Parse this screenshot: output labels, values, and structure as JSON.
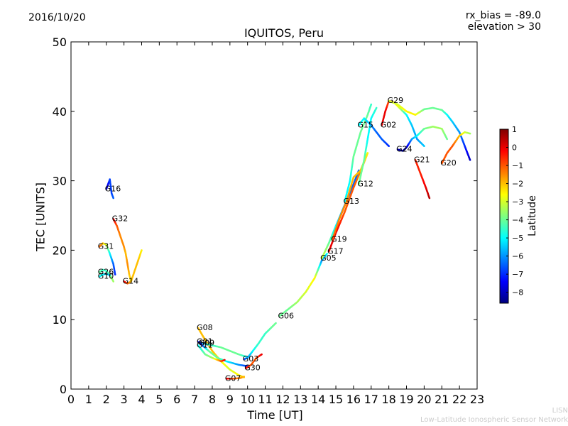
{
  "header": {
    "date": "2016/10/20",
    "title": "IQUITOS, Peru",
    "rx_bias": "rx_bias = -89.0",
    "elevation": "elevation > 30"
  },
  "footer": {
    "credit_line1": "LISN",
    "credit_line2": "Low-Latitude Ionospheric Sensor Network"
  },
  "colorbar": {
    "label": "Latitude",
    "ticks": [
      "1",
      "0",
      "−1",
      "−2",
      "−3",
      "−4",
      "−5",
      "−6",
      "−7",
      "−8"
    ],
    "tick_values": [
      1,
      0,
      -1,
      -2,
      -3,
      -4,
      -5,
      -6,
      -7,
      -8
    ],
    "range": [
      -8.6,
      1.0
    ],
    "colormap": "jet"
  },
  "chart_data": {
    "type": "scatter",
    "xlabel": "Time [UT]",
    "ylabel": "TEC [UNITS]",
    "xlim": [
      0,
      23
    ],
    "ylim": [
      0,
      50
    ],
    "xticks": [
      0,
      1,
      2,
      3,
      4,
      5,
      6,
      7,
      8,
      9,
      10,
      11,
      12,
      13,
      14,
      15,
      16,
      17,
      18,
      19,
      20,
      21,
      22,
      23
    ],
    "yticks": [
      0,
      10,
      20,
      30,
      40,
      50
    ],
    "grid": false,
    "color_by": "Latitude",
    "series": [
      {
        "name": "G16",
        "points": [
          [
            2.0,
            28.8,
            -8
          ],
          [
            2.1,
            29.5,
            -7.5
          ],
          [
            2.2,
            30.2,
            -6.8
          ],
          [
            2.3,
            28.2,
            -6.8
          ],
          [
            2.4,
            27.5,
            -6.5
          ]
        ]
      },
      {
        "name": "G32",
        "points": [
          [
            2.4,
            24.5,
            0
          ],
          [
            2.6,
            23.5,
            -1
          ],
          [
            2.8,
            22,
            -1.5
          ],
          [
            3.0,
            20.5,
            -1.5
          ],
          [
            3.1,
            19.5,
            -2
          ],
          [
            3.2,
            18,
            -1.5
          ],
          [
            3.3,
            16.5,
            -2
          ],
          [
            3.4,
            15.5,
            -2.5
          ]
        ]
      },
      {
        "name": "G31",
        "points": [
          [
            1.6,
            20.5,
            -1
          ],
          [
            1.8,
            21,
            -2
          ],
          [
            2.0,
            20.8,
            -3
          ],
          [
            2.2,
            19.5,
            -5
          ],
          [
            2.4,
            18,
            -6.5
          ],
          [
            2.5,
            16.5,
            -7
          ]
        ]
      },
      {
        "name": "G26",
        "points": [
          [
            1.6,
            16.8,
            -4
          ],
          [
            1.8,
            17.2,
            -4.5
          ],
          [
            2.0,
            17,
            -4.5
          ],
          [
            2.2,
            16.5,
            -4
          ],
          [
            2.4,
            15.5,
            -3.5
          ]
        ]
      },
      {
        "name": "G10",
        "points": [
          [
            1.6,
            16.2,
            -5
          ],
          [
            1.8,
            16.5,
            -5
          ],
          [
            2.0,
            16.6,
            -5.5
          ],
          [
            2.2,
            16.4,
            -5.5
          ]
        ]
      },
      {
        "name": "G14",
        "points": [
          [
            3.0,
            15.5,
            0
          ],
          [
            3.2,
            15.2,
            -1
          ],
          [
            3.4,
            15.5,
            -2
          ],
          [
            3.6,
            17,
            -2
          ],
          [
            3.8,
            18.5,
            -2
          ],
          [
            4.0,
            20,
            -2.5
          ]
        ]
      },
      {
        "name": "G08",
        "points": [
          [
            7.2,
            8.8,
            -2
          ],
          [
            7.5,
            7.5,
            -2
          ],
          [
            8.0,
            5.5,
            -2
          ],
          [
            8.5,
            4,
            -2.5
          ],
          [
            9.0,
            2.8,
            -3
          ],
          [
            9.5,
            2,
            -2.5
          ],
          [
            9.8,
            1.7,
            -2
          ]
        ]
      },
      {
        "name": "G01",
        "points": [
          [
            7.2,
            6.8,
            -7.5
          ],
          [
            7.6,
            6.5,
            -5
          ],
          [
            8.0,
            6.3,
            -4.5
          ],
          [
            8.5,
            6,
            -4
          ],
          [
            9.0,
            5.5,
            -4
          ],
          [
            9.5,
            5,
            -4
          ],
          [
            10.0,
            4.6,
            -5
          ]
        ]
      },
      {
        "name": "G09",
        "points": [
          [
            7.3,
            6.6,
            -8
          ],
          [
            7.8,
            5.5,
            -4
          ],
          [
            8.3,
            4.5,
            -4
          ],
          [
            8.8,
            4,
            -5
          ],
          [
            9.5,
            3.5,
            -6
          ],
          [
            10.0,
            3.3,
            -7
          ]
        ]
      },
      {
        "name": "G11",
        "points": [
          [
            7.2,
            6.3,
            -5
          ],
          [
            7.6,
            5,
            -4
          ],
          [
            8.0,
            4.5,
            -3.5
          ],
          [
            8.5,
            4,
            -1
          ],
          [
            8.7,
            4.2,
            0
          ]
        ]
      },
      {
        "name": "G07",
        "points": [
          [
            8.8,
            1.5,
            0
          ],
          [
            9.2,
            1.5,
            -1
          ],
          [
            9.6,
            1.6,
            -1.5
          ],
          [
            9.8,
            1.8,
            -2
          ]
        ]
      },
      {
        "name": "G03",
        "points": [
          [
            9.8,
            4.3,
            -7
          ],
          [
            10.0,
            4.5,
            -6
          ],
          [
            10.3,
            5.5,
            -5
          ],
          [
            10.6,
            6.5,
            -4.5
          ],
          [
            11.0,
            8,
            -4.5
          ],
          [
            11.4,
            9,
            -4
          ],
          [
            11.6,
            9.5,
            -4
          ]
        ]
      },
      {
        "name": "G30",
        "points": [
          [
            9.9,
            3,
            0
          ],
          [
            10.2,
            3.5,
            -1
          ],
          [
            10.5,
            4.5,
            -1
          ],
          [
            10.8,
            5,
            0
          ]
        ]
      },
      {
        "name": "G06",
        "points": [
          [
            11.8,
            10.5,
            -4
          ],
          [
            12.3,
            11.5,
            -4
          ],
          [
            12.8,
            12.5,
            -3.5
          ],
          [
            13.3,
            14,
            -3
          ],
          [
            13.8,
            16,
            -2.5
          ],
          [
            14.2,
            18.5,
            -6
          ],
          [
            14.5,
            19.5,
            -5
          ]
        ]
      },
      {
        "name": "G05",
        "points": [
          [
            14.2,
            18.8,
            -3
          ],
          [
            14.6,
            21,
            -4
          ],
          [
            15.0,
            23.5,
            -5
          ],
          [
            15.5,
            26.5,
            -6
          ],
          [
            16.0,
            29.5,
            -6.5
          ],
          [
            16.3,
            31.5,
            -6.5
          ]
        ]
      },
      {
        "name": "G17",
        "points": [
          [
            14.6,
            19.8,
            0
          ],
          [
            15.0,
            22.5,
            0
          ],
          [
            15.5,
            25.5,
            -1
          ],
          [
            16.0,
            29,
            -1
          ],
          [
            16.5,
            32,
            -1.5
          ],
          [
            16.8,
            34,
            -2
          ]
        ]
      },
      {
        "name": "G19",
        "points": [
          [
            14.8,
            21.5,
            -1
          ],
          [
            15.2,
            24.5,
            -1.5
          ],
          [
            15.6,
            27,
            -1.5
          ],
          [
            16.0,
            30.5,
            -2
          ],
          [
            16.4,
            31.5,
            -2
          ],
          [
            16.8,
            34,
            -2.5
          ]
        ]
      },
      {
        "name": "G13",
        "points": [
          [
            15.5,
            27,
            -5
          ],
          [
            15.8,
            30,
            -5
          ],
          [
            16.0,
            33.5,
            -4
          ],
          [
            16.4,
            37,
            -4
          ],
          [
            16.8,
            39.5,
            -4
          ],
          [
            17.0,
            41,
            -4.5
          ]
        ]
      },
      {
        "name": "G12",
        "points": [
          [
            16.3,
            29.5,
            -4
          ],
          [
            16.6,
            33,
            -4
          ],
          [
            16.8,
            36,
            -5
          ],
          [
            17.0,
            39,
            -5
          ],
          [
            17.3,
            40.5,
            -4.5
          ]
        ]
      },
      {
        "name": "G15",
        "points": [
          [
            16.3,
            38,
            -5
          ],
          [
            16.6,
            39,
            -5
          ],
          [
            17.0,
            38,
            -6
          ],
          [
            17.3,
            37,
            -6.5
          ],
          [
            17.6,
            36,
            -6.5
          ],
          [
            18.0,
            35,
            -7
          ]
        ]
      },
      {
        "name": "G02",
        "points": [
          [
            17.6,
            38,
            0
          ],
          [
            17.8,
            40,
            0
          ],
          [
            18.0,
            41.5,
            -1
          ],
          [
            18.3,
            41.3,
            -2
          ],
          [
            18.6,
            40.5,
            -3
          ],
          [
            19.0,
            39.5,
            -5
          ],
          [
            19.3,
            38,
            -5.5
          ],
          [
            19.6,
            36,
            -6
          ],
          [
            20.0,
            35,
            -5.5
          ]
        ]
      },
      {
        "name": "G29",
        "points": [
          [
            18.0,
            41.5,
            -3
          ],
          [
            18.5,
            41,
            -3
          ],
          [
            19.0,
            40,
            -2.5
          ],
          [
            19.5,
            39.5,
            -2.5
          ],
          [
            20.0,
            40.3,
            -4
          ],
          [
            20.5,
            40.5,
            -4
          ],
          [
            21.0,
            40.2,
            -4
          ],
          [
            21.3,
            39.5,
            -5
          ],
          [
            21.6,
            38.5,
            -5.5
          ],
          [
            22.0,
            37,
            -6
          ],
          [
            22.3,
            35,
            -7
          ],
          [
            22.6,
            33,
            -8
          ]
        ]
      },
      {
        "name": "G24",
        "points": [
          [
            18.5,
            34.5,
            -8
          ],
          [
            18.8,
            34.3,
            -8.5
          ],
          [
            19.0,
            34.8,
            -8
          ],
          [
            19.3,
            36,
            -6
          ],
          [
            19.6,
            36.5,
            -5
          ],
          [
            20.0,
            37.5,
            -4
          ],
          [
            20.5,
            37.8,
            -3.5
          ],
          [
            21.0,
            37.5,
            -3.5
          ],
          [
            21.3,
            36,
            -4
          ]
        ]
      },
      {
        "name": "G21",
        "points": [
          [
            19.5,
            33,
            -0.5
          ],
          [
            19.8,
            31,
            -0.5
          ],
          [
            20.1,
            29,
            0
          ],
          [
            20.3,
            27.5,
            0.5
          ]
        ]
      },
      {
        "name": "G20",
        "points": [
          [
            21.0,
            32.5,
            -1
          ],
          [
            21.3,
            34,
            -1
          ],
          [
            21.6,
            35,
            -1
          ],
          [
            22.0,
            36.5,
            -2
          ],
          [
            22.3,
            37,
            -3
          ],
          [
            22.6,
            36.8,
            -3.5
          ]
        ]
      }
    ],
    "annotations": [
      "G16",
      "G32",
      "G31",
      "G26",
      "G10",
      "G14",
      "G08",
      "G01",
      "G09",
      "G11",
      "G07",
      "G03",
      "G30",
      "G06",
      "G05",
      "G17",
      "G19",
      "G13",
      "G12",
      "G15",
      "G02",
      "G29",
      "G24",
      "G21",
      "G20"
    ]
  }
}
